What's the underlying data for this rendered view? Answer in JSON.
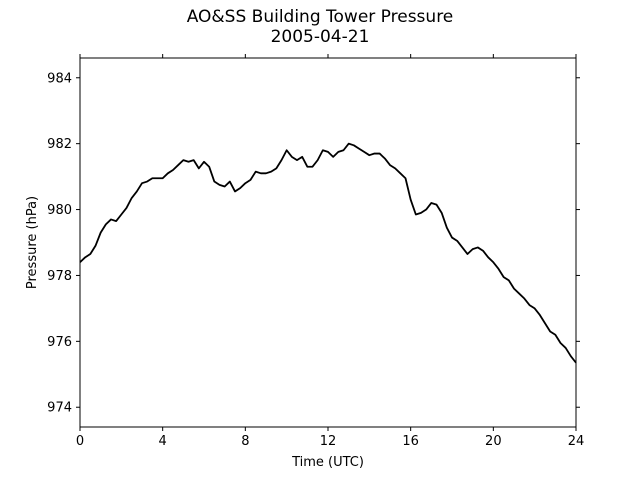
{
  "chart_data": {
    "type": "line",
    "title": "AO&SS Building Tower Pressure",
    "subtitle": "2005-04-21",
    "xlabel": "Time (UTC)",
    "ylabel": "Pressure (hPa)",
    "xlim": [
      0,
      24
    ],
    "ylim": [
      973.4,
      984.6
    ],
    "xticks": [
      0,
      4,
      8,
      12,
      16,
      20,
      24
    ],
    "yticks": [
      974,
      976,
      978,
      980,
      982,
      984
    ],
    "grid": false,
    "line_color": "#000000",
    "series": [
      {
        "x": [
          0,
          0.25,
          0.5,
          0.75,
          1,
          1.25,
          1.5,
          1.75,
          2,
          2.25,
          2.5,
          2.75,
          3,
          3.25,
          3.5,
          3.75,
          4,
          4.25,
          4.5,
          4.75,
          5,
          5.25,
          5.5,
          5.75,
          6,
          6.25,
          6.5,
          6.75,
          7,
          7.25,
          7.5,
          7.75,
          8,
          8.25,
          8.5,
          8.75,
          9,
          9.25,
          9.5,
          9.75,
          10,
          10.25,
          10.5,
          10.75,
          11,
          11.25,
          11.5,
          11.75,
          12,
          12.25,
          12.5,
          12.75,
          13,
          13.25,
          13.5,
          13.75,
          14,
          14.25,
          14.5,
          14.75,
          15,
          15.25,
          15.5,
          15.75,
          16,
          16.25,
          16.5,
          16.75,
          17,
          17.25,
          17.5,
          17.75,
          18,
          18.25,
          18.5,
          18.75,
          19,
          19.25,
          19.5,
          19.75,
          20,
          20.25,
          20.5,
          20.75,
          21,
          21.25,
          21.5,
          21.75,
          22,
          22.25,
          22.5,
          22.75,
          23,
          23.25,
          23.5,
          23.75,
          24
        ],
        "y": [
          978.4,
          978.55,
          978.65,
          978.9,
          979.3,
          979.55,
          979.7,
          979.65,
          979.85,
          980.05,
          980.35,
          980.55,
          980.8,
          980.85,
          980.95,
          980.95,
          980.95,
          981.1,
          981.2,
          981.35,
          981.5,
          981.45,
          981.5,
          981.25,
          981.45,
          981.3,
          980.85,
          980.75,
          980.7,
          980.85,
          980.55,
          980.65,
          980.8,
          980.9,
          981.15,
          981.1,
          981.1,
          981.15,
          981.25,
          981.5,
          981.8,
          981.6,
          981.5,
          981.6,
          981.3,
          981.3,
          981.5,
          981.8,
          981.75,
          981.6,
          981.75,
          981.8,
          982.0,
          981.95,
          981.85,
          981.75,
          981.65,
          981.7,
          981.7,
          981.55,
          981.35,
          981.25,
          981.1,
          980.95,
          980.3,
          979.85,
          979.9,
          980.0,
          980.2,
          980.15,
          979.9,
          979.45,
          979.15,
          979.05,
          978.85,
          978.65,
          978.8,
          978.85,
          978.75,
          978.55,
          978.4,
          978.2,
          977.95,
          977.85,
          977.6,
          977.45,
          977.3,
          977.1,
          977.0,
          976.8,
          976.55,
          976.3,
          976.2,
          975.95,
          975.8,
          975.55,
          975.35
        ]
      }
    ]
  }
}
